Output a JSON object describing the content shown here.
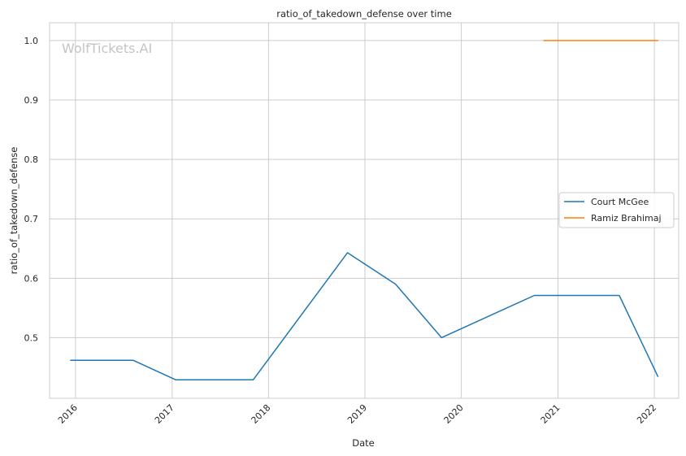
{
  "chart_data": {
    "type": "line",
    "title": "ratio_of_takedown_defense over time",
    "xlabel": "Date",
    "ylabel": "ratio_of_takedown_defense",
    "watermark": "WolfTickets.AI",
    "x_ticks": [
      "2016",
      "2017",
      "2018",
      "2019",
      "2020",
      "2021",
      "2022"
    ],
    "y_ticks": [
      "0.5",
      "0.6",
      "0.7",
      "0.8",
      "0.9",
      "1.0"
    ],
    "xlim": [
      "2015-09-25",
      "2022-04-03"
    ],
    "ylim": [
      0.398,
      1.03
    ],
    "grid": true,
    "legend_position": "center-right",
    "series": [
      {
        "name": "Court McGee",
        "color": "#1f77b4",
        "points": [
          [
            "2015-12-12",
            0.462
          ],
          [
            "2016-08-06",
            0.462
          ],
          [
            "2017-01-15",
            0.429
          ],
          [
            "2017-11-04",
            0.429
          ],
          [
            "2018-10-27",
            0.643
          ],
          [
            "2019-04-27",
            0.59
          ],
          [
            "2019-10-18",
            0.5
          ],
          [
            "2020-10-03",
            0.571
          ],
          [
            "2021-08-21",
            0.571
          ],
          [
            "2022-01-15",
            0.434
          ]
        ]
      },
      {
        "name": "Ramiz Brahimaj",
        "color": "#ff7f0e",
        "points": [
          [
            "2020-11-07",
            1.0
          ],
          [
            "2022-01-15",
            1.0
          ]
        ]
      }
    ]
  }
}
